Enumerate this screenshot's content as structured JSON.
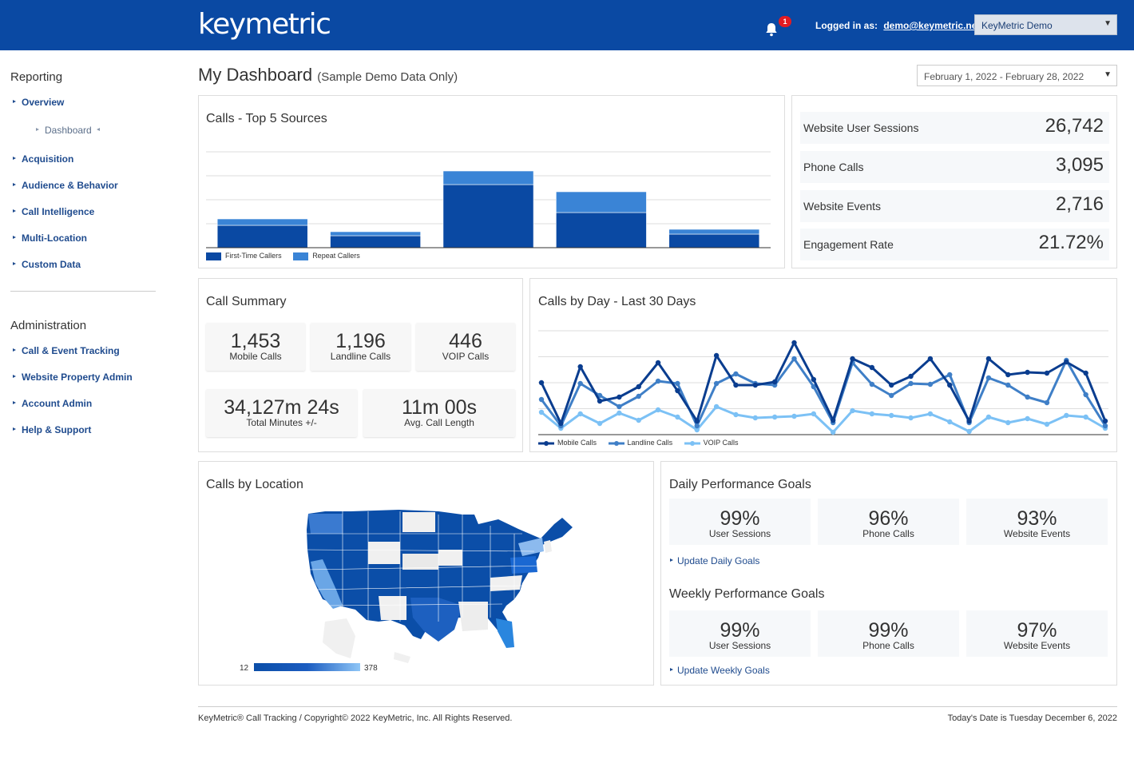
{
  "header": {
    "logo": "keymetric",
    "notification_count": "1",
    "logged_in_label": "Logged in as:",
    "user_email": "demo@keymetric.net",
    "account_select": "KeyMetric Demo"
  },
  "sidebar": {
    "reporting_title": "Reporting",
    "reporting_items": [
      "Overview",
      "Dashboard",
      "Acquisition",
      "Audience & Behavior",
      "Call Intelligence",
      "Multi-Location",
      "Custom Data"
    ],
    "admin_title": "Administration",
    "admin_items": [
      "Call & Event Tracking",
      "Website Property Admin",
      "Account Admin",
      "Help & Support"
    ]
  },
  "page": {
    "title": "My Dashboard",
    "subtitle": "(Sample Demo Data Only)",
    "date_range": "February 1, 2022 - February 28, 2022"
  },
  "top_sources": {
    "title": "Calls - Top 5 Sources",
    "legend": [
      "First-Time Callers",
      "Repeat Callers"
    ]
  },
  "kpis": [
    {
      "label": "Website User Sessions",
      "value": "26,742"
    },
    {
      "label": "Phone Calls",
      "value": "3,095"
    },
    {
      "label": "Website Events",
      "value": "2,716"
    },
    {
      "label": "Engagement Rate",
      "value": "21.72%"
    }
  ],
  "call_summary": {
    "title": "Call Summary",
    "tiles": [
      {
        "value": "1,453",
        "label": "Mobile Calls"
      },
      {
        "value": "1,196",
        "label": "Landline Calls"
      },
      {
        "value": "446",
        "label": "VOIP Calls"
      },
      {
        "value": "34,127m 24s",
        "label": "Total Minutes +/-"
      },
      {
        "value": "11m 00s",
        "label": "Avg. Call Length"
      }
    ]
  },
  "calls_by_day": {
    "title": "Calls by Day - Last 30 Days",
    "legend": [
      "Mobile Calls",
      "Landline Calls",
      "VOIP Calls"
    ]
  },
  "location": {
    "title": "Calls by Location",
    "scale_min": "12",
    "scale_max": "378"
  },
  "daily_goals": {
    "title": "Daily Performance Goals",
    "tiles": [
      {
        "value": "99%",
        "label": "User Sessions"
      },
      {
        "value": "96%",
        "label": "Phone Calls"
      },
      {
        "value": "93%",
        "label": "Website Events"
      }
    ],
    "link": "Update Daily Goals"
  },
  "weekly_goals": {
    "title": "Weekly Performance Goals",
    "tiles": [
      {
        "value": "99%",
        "label": "User Sessions"
      },
      {
        "value": "99%",
        "label": "Phone Calls"
      },
      {
        "value": "97%",
        "label": "Website Events"
      }
    ],
    "link": "Update Weekly Goals"
  },
  "footer": {
    "copyright": "KeyMetric® Call Tracking / Copyright© 2022 KeyMetric, Inc. All Rights Reserved.",
    "today": "Today's Date is Tuesday December 6, 2022"
  },
  "colors": {
    "brand": "#0a49a3",
    "first_time": "#0a49a3",
    "repeat": "#3a84d6",
    "mobile": "#0a3d8f",
    "landline": "#3f7fc7",
    "voip": "#7cc1f5"
  },
  "chart_data": [
    {
      "type": "bar",
      "stacked": true,
      "categories": [
        "",
        "",
        "",
        "",
        ""
      ],
      "series": [
        {
          "name": "First-Time Callers",
          "values": [
            28,
            15,
            79,
            44,
            17
          ]
        },
        {
          "name": "Repeat Callers",
          "values": [
            8,
            5,
            17,
            26,
            6
          ]
        }
      ],
      "ylim": [
        0,
        120
      ],
      "grid": true,
      "legend": "bottom-left"
    },
    {
      "type": "line",
      "x": [
        1,
        2,
        3,
        4,
        5,
        6,
        7,
        8,
        9,
        10,
        11,
        12,
        13,
        14,
        15,
        16,
        17,
        18,
        19,
        20,
        21,
        22,
        23,
        24,
        25,
        26,
        27,
        28,
        29,
        30
      ],
      "series": [
        {
          "name": "Mobile Calls",
          "values": [
            65,
            14,
            85,
            42,
            47,
            60,
            90,
            55,
            17,
            99,
            62,
            62,
            66,
            115,
            69,
            18,
            95,
            84,
            62,
            73,
            95,
            62,
            17,
            95,
            75,
            78,
            77,
            91,
            77,
            17
          ]
        },
        {
          "name": "Landline Calls",
          "values": [
            44,
            11,
            64,
            49,
            35,
            48,
            67,
            64,
            11,
            64,
            76,
            64,
            62,
            95,
            60,
            15,
            90,
            63,
            49,
            64,
            63,
            75,
            15,
            71,
            62,
            47,
            40,
            93,
            50,
            11
          ]
        },
        {
          "name": "VOIP Calls",
          "values": [
            28,
            8,
            26,
            14,
            27,
            18,
            31,
            22,
            6,
            35,
            25,
            21,
            22,
            23,
            26,
            3,
            30,
            26,
            24,
            21,
            26,
            16,
            4,
            22,
            15,
            20,
            13,
            24,
            22,
            8
          ]
        }
      ],
      "ylim": [
        0,
        130
      ],
      "grid": true,
      "legend": "bottom-left"
    }
  ]
}
